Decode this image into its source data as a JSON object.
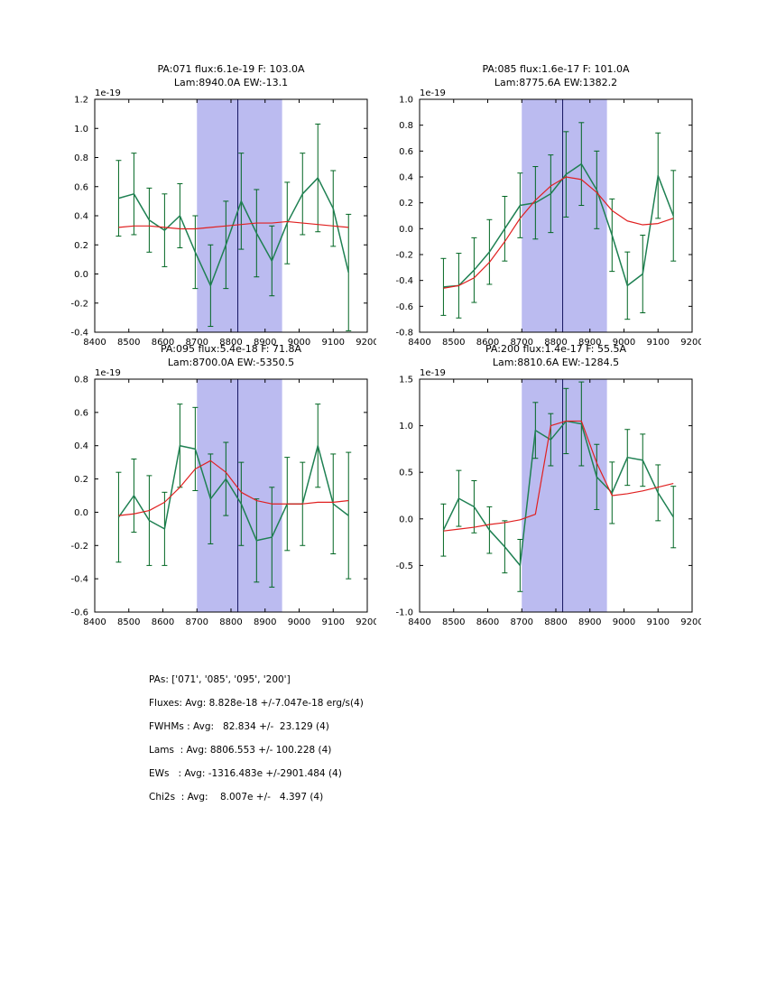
{
  "colors": {
    "data_line": "#1e8052",
    "error_bar": "#006622",
    "model_line": "#e02020",
    "band": "#bbbbf0",
    "vline": "#151560",
    "axis": "#000000",
    "background": "#ffffff"
  },
  "chart_data": [
    {
      "type": "line",
      "title_line1": "PA:071 flux:6.1e-19 F: 103.0A",
      "title_line2": "Lam:8940.0A EW:-13.1",
      "offset_label": "1e-19",
      "xlim": [
        8400,
        9200
      ],
      "ylim": [
        -0.4,
        1.2
      ],
      "xticks": [
        8400,
        8500,
        8600,
        8700,
        8800,
        8900,
        9000,
        9100,
        9200
      ],
      "yticks": [
        -0.4,
        -0.2,
        0.0,
        0.2,
        0.4,
        0.6,
        0.8,
        1.0,
        1.2
      ],
      "band": [
        8700,
        8950
      ],
      "vline": 8820,
      "grid": false,
      "x": [
        8470,
        8515,
        8560,
        8605,
        8650,
        8695,
        8740,
        8785,
        8830,
        8875,
        8920,
        8965,
        9010,
        9055,
        9100,
        9145
      ],
      "series": [
        {
          "name": "spectrum-data",
          "values": [
            0.52,
            0.55,
            0.37,
            0.3,
            0.4,
            0.15,
            -0.08,
            0.2,
            0.5,
            0.28,
            0.09,
            0.35,
            0.55,
            0.66,
            0.45,
            0.01
          ],
          "errors": [
            0.26,
            0.28,
            0.22,
            0.25,
            0.22,
            0.25,
            0.28,
            0.3,
            0.33,
            0.3,
            0.24,
            0.28,
            0.28,
            0.37,
            0.26,
            0.4
          ]
        },
        {
          "name": "model-fit",
          "values": [
            0.32,
            0.33,
            0.33,
            0.32,
            0.31,
            0.31,
            0.32,
            0.33,
            0.34,
            0.35,
            0.35,
            0.36,
            0.35,
            0.34,
            0.33,
            0.32
          ]
        }
      ]
    },
    {
      "type": "line",
      "title_line1": "PA:085 flux:1.6e-17 F: 101.0A",
      "title_line2": "Lam:8775.6A EW:1382.2",
      "offset_label": "1e-19",
      "xlim": [
        8400,
        9200
      ],
      "ylim": [
        -0.8,
        1.0
      ],
      "xticks": [
        8400,
        8500,
        8600,
        8700,
        8800,
        8900,
        9000,
        9100,
        9200
      ],
      "yticks": [
        -0.8,
        -0.6,
        -0.4,
        -0.2,
        0.0,
        0.2,
        0.4,
        0.6,
        0.8,
        1.0
      ],
      "band": [
        8700,
        8950
      ],
      "vline": 8820,
      "grid": false,
      "x": [
        8470,
        8515,
        8560,
        8605,
        8650,
        8695,
        8740,
        8785,
        8830,
        8875,
        8920,
        8965,
        9010,
        9055,
        9100,
        9145
      ],
      "series": [
        {
          "name": "spectrum-data",
          "values": [
            -0.45,
            -0.44,
            -0.32,
            -0.18,
            0.0,
            0.18,
            0.2,
            0.27,
            0.42,
            0.5,
            0.3,
            -0.05,
            -0.44,
            -0.35,
            0.41,
            0.1
          ],
          "errors": [
            0.22,
            0.25,
            0.25,
            0.25,
            0.25,
            0.25,
            0.28,
            0.3,
            0.33,
            0.32,
            0.3,
            0.28,
            0.26,
            0.3,
            0.33,
            0.35
          ]
        },
        {
          "name": "model-fit",
          "values": [
            -0.46,
            -0.44,
            -0.38,
            -0.26,
            -0.1,
            0.08,
            0.22,
            0.33,
            0.4,
            0.38,
            0.28,
            0.14,
            0.06,
            0.03,
            0.04,
            0.08
          ]
        }
      ]
    },
    {
      "type": "line",
      "title_line1": "PA:095 flux:5.4e-18 F: 71.8A",
      "title_line2": "Lam:8700.0A EW:-5350.5",
      "offset_label": "1e-19",
      "xlim": [
        8400,
        9200
      ],
      "ylim": [
        -0.6,
        0.8
      ],
      "xticks": [
        8400,
        8500,
        8600,
        8700,
        8800,
        8900,
        9000,
        9100,
        9200
      ],
      "yticks": [
        -0.6,
        -0.4,
        -0.2,
        0.0,
        0.2,
        0.4,
        0.6,
        0.8
      ],
      "band": [
        8700,
        8950
      ],
      "vline": 8820,
      "grid": false,
      "x": [
        8470,
        8515,
        8560,
        8605,
        8650,
        8695,
        8740,
        8785,
        8830,
        8875,
        8920,
        8965,
        9010,
        9055,
        9100,
        9145
      ],
      "series": [
        {
          "name": "spectrum-data",
          "values": [
            -0.03,
            0.1,
            -0.05,
            -0.1,
            0.4,
            0.38,
            0.08,
            0.2,
            0.05,
            -0.17,
            -0.15,
            0.05,
            0.05,
            0.4,
            0.05,
            -0.02
          ],
          "errors": [
            0.27,
            0.22,
            0.27,
            0.22,
            0.25,
            0.25,
            0.27,
            0.22,
            0.25,
            0.25,
            0.3,
            0.28,
            0.25,
            0.25,
            0.3,
            0.38
          ]
        },
        {
          "name": "model-fit",
          "values": [
            -0.02,
            -0.01,
            0.01,
            0.06,
            0.15,
            0.26,
            0.31,
            0.24,
            0.12,
            0.07,
            0.05,
            0.05,
            0.05,
            0.06,
            0.06,
            0.07
          ]
        }
      ]
    },
    {
      "type": "line",
      "title_line1": "PA:200 flux:1.4e-17 F: 55.5A",
      "title_line2": "Lam:8810.6A EW:-1284.5",
      "offset_label": "1e-19",
      "xlim": [
        8400,
        9200
      ],
      "ylim": [
        -1.0,
        1.5
      ],
      "xticks": [
        8400,
        8500,
        8600,
        8700,
        8800,
        8900,
        9000,
        9100,
        9200
      ],
      "yticks": [
        -1.0,
        -0.5,
        0.0,
        0.5,
        1.0,
        1.5
      ],
      "band": [
        8700,
        8950
      ],
      "vline": 8820,
      "grid": false,
      "x": [
        8470,
        8515,
        8560,
        8605,
        8650,
        8695,
        8740,
        8785,
        8830,
        8875,
        8920,
        8965,
        9010,
        9055,
        9100,
        9145
      ],
      "series": [
        {
          "name": "spectrum-data",
          "values": [
            -0.12,
            0.22,
            0.13,
            -0.12,
            -0.3,
            -0.5,
            0.95,
            0.85,
            1.05,
            1.02,
            0.45,
            0.28,
            0.66,
            0.63,
            0.28,
            0.02
          ],
          "errors": [
            0.28,
            0.3,
            0.28,
            0.25,
            0.28,
            0.28,
            0.3,
            0.28,
            0.35,
            0.45,
            0.35,
            0.33,
            0.3,
            0.28,
            0.3,
            0.33
          ]
        },
        {
          "name": "model-fit",
          "values": [
            -0.13,
            -0.11,
            -0.09,
            -0.06,
            -0.04,
            -0.01,
            0.05,
            1.0,
            1.05,
            1.05,
            0.6,
            0.25,
            0.27,
            0.3,
            0.34,
            0.38
          ]
        }
      ]
    }
  ],
  "stats": {
    "lines": [
      "PAs: ['071', '085', '095', '200']",
      "Fluxes: Avg: 8.828e-18 +/-7.047e-18 erg/s(4)",
      "FWHMs : Avg:   82.834 +/-  23.129 (4)",
      "Lams  : Avg: 8806.553 +/- 100.228 (4)",
      "EWs   : Avg: -1316.483e +/-2901.484 (4)",
      "Chi2s  : Avg:    8.007e +/-   4.397 (4)"
    ]
  }
}
